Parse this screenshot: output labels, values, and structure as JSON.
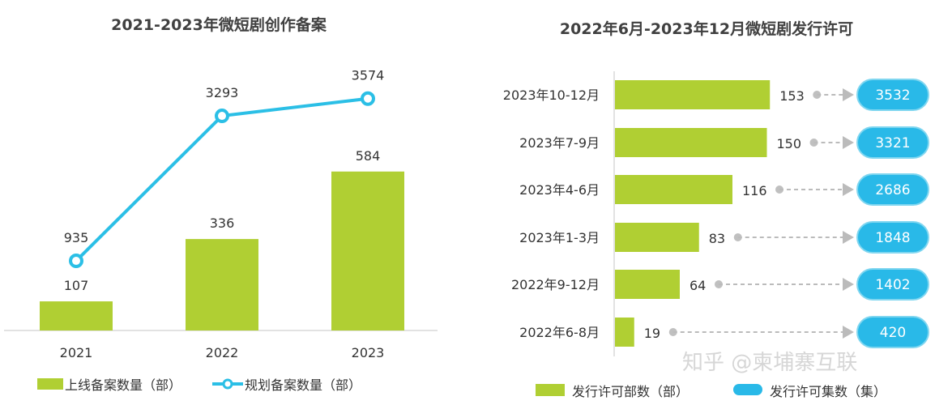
{
  "chart_data": [
    {
      "type": "bar+line",
      "title": "2021-2023年微短剧创作备案",
      "categories": [
        "2021",
        "2022",
        "2023"
      ],
      "series": [
        {
          "name": "上线备案数量（部）",
          "type": "bar",
          "values": [
            107,
            336,
            584
          ]
        },
        {
          "name": "规划备案数量（部）",
          "type": "line",
          "values": [
            935,
            3293,
            3574
          ]
        }
      ],
      "legend": "bottom",
      "grid": false,
      "colors": {
        "bar": "#b0cf33",
        "line": "#2bbfe6"
      }
    },
    {
      "type": "bar",
      "orientation": "horizontal",
      "title": "2022年6月-2023年12月微短剧发行许可",
      "categories": [
        "2023年10-12月",
        "2023年7-9月",
        "2023年4-6月",
        "2023年1-3月",
        "2022年9-12月",
        "2022年6-8月"
      ],
      "series": [
        {
          "name": "发行许可部数（部）",
          "values": [
            153,
            150,
            116,
            83,
            64,
            19
          ]
        },
        {
          "name": "发行许可集数（集）",
          "values": [
            3532,
            3321,
            2686,
            1848,
            1402,
            420
          ]
        }
      ],
      "legend": "bottom",
      "grid": false,
      "colors": {
        "bar": "#b0cf33",
        "pill": "#29b9e8"
      }
    }
  ],
  "watermark": "知乎 @柬埔寨互联"
}
